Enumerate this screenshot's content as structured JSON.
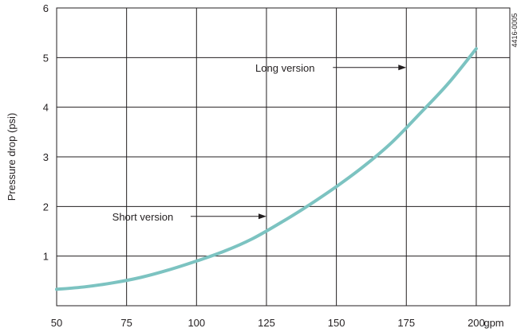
{
  "chart_data": {
    "type": "line",
    "x": [
      50,
      60,
      70,
      80,
      90,
      100,
      110,
      120,
      130,
      140,
      150,
      160,
      170,
      180,
      190,
      200
    ],
    "series": [
      {
        "values": [
          0.33,
          0.38,
          0.46,
          0.57,
          0.72,
          0.9,
          1.1,
          1.35,
          1.67,
          2.02,
          2.4,
          2.82,
          3.3,
          3.88,
          4.48,
          5.18
        ]
      }
    ],
    "xlabel": "gpm",
    "ylabel": "Pressure drop (psi)",
    "xlim": [
      50,
      212
    ],
    "ylim": [
      0,
      6
    ],
    "xticks": [
      50,
      75,
      100,
      125,
      150,
      175,
      200
    ],
    "yticks": [
      1,
      2,
      3,
      4,
      5,
      6
    ],
    "grid": true,
    "line_color": "#7cc3c1",
    "annotations": [
      {
        "text": "Long version",
        "x": 175,
        "y": 4.8
      },
      {
        "text": "Short version",
        "x": 125,
        "y": 1.8
      }
    ],
    "figure_id": "4416-0005"
  }
}
